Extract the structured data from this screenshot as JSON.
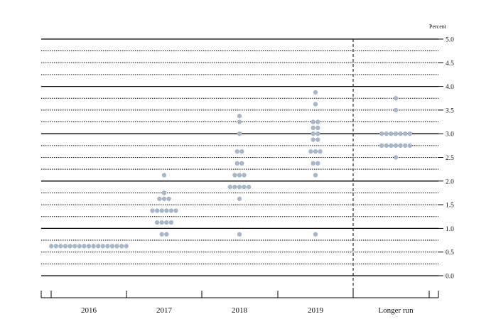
{
  "chart_data": {
    "type": "scatter",
    "subtype": "dot-plot",
    "title": "",
    "xlabel": "",
    "ylabel": "",
    "unit_label": "Percent",
    "categories": [
      "2016",
      "2017",
      "2018",
      "2019",
      "Longer run"
    ],
    "ylim": [
      0,
      5
    ],
    "y_ticks": [
      "0.0",
      "0.5",
      "1.0",
      "1.5",
      "2.0",
      "2.5",
      "3.0",
      "3.5",
      "4.0",
      "4.5",
      "5.0"
    ],
    "y_axis_side": "right",
    "grid": true,
    "longer_run_separator": "dashed vertical line",
    "dot_color": "#a9b8c8",
    "series": [
      {
        "category": "2016",
        "points": [
          {
            "y": 0.625,
            "count": 17
          }
        ]
      },
      {
        "category": "2017",
        "points": [
          {
            "y": 0.875,
            "count": 2
          },
          {
            "y": 1.125,
            "count": 4
          },
          {
            "y": 1.375,
            "count": 6
          },
          {
            "y": 1.625,
            "count": 3
          },
          {
            "y": 1.75,
            "count": 1
          },
          {
            "y": 2.125,
            "count": 1
          }
        ]
      },
      {
        "category": "2018",
        "points": [
          {
            "y": 0.875,
            "count": 1
          },
          {
            "y": 1.625,
            "count": 1
          },
          {
            "y": 1.875,
            "count": 5
          },
          {
            "y": 2.125,
            "count": 3
          },
          {
            "y": 2.375,
            "count": 2
          },
          {
            "y": 2.625,
            "count": 2
          },
          {
            "y": 3.0,
            "count": 1
          },
          {
            "y": 3.25,
            "count": 1
          },
          {
            "y": 3.375,
            "count": 1
          }
        ]
      },
      {
        "category": "2019",
        "points": [
          {
            "y": 0.875,
            "count": 1
          },
          {
            "y": 2.125,
            "count": 1
          },
          {
            "y": 2.375,
            "count": 2
          },
          {
            "y": 2.625,
            "count": 3
          },
          {
            "y": 2.875,
            "count": 2
          },
          {
            "y": 3.0,
            "count": 2
          },
          {
            "y": 3.125,
            "count": 2
          },
          {
            "y": 3.25,
            "count": 2
          },
          {
            "y": 3.625,
            "count": 1
          },
          {
            "y": 3.875,
            "count": 1
          }
        ]
      },
      {
        "category": "Longer run",
        "points": [
          {
            "y": 2.5,
            "count": 1
          },
          {
            "y": 2.75,
            "count": 7
          },
          {
            "y": 3.0,
            "count": 7
          },
          {
            "y": 3.5,
            "count": 1
          },
          {
            "y": 3.75,
            "count": 1
          }
        ]
      }
    ]
  }
}
